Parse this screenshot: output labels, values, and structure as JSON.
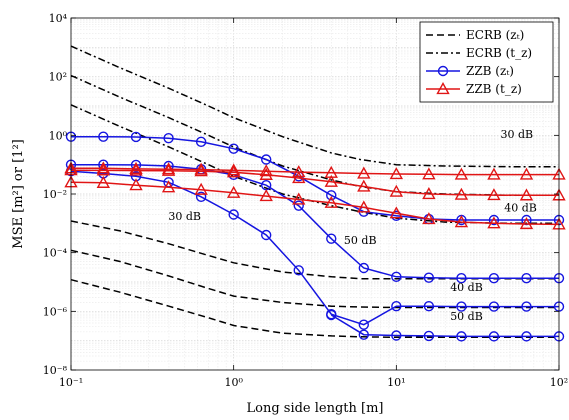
{
  "chart_data": {
    "type": "line",
    "x_scale": "log",
    "y_scale": "log",
    "xlim": [
      0.1,
      100
    ],
    "ylim": [
      1e-08,
      10000
    ],
    "xlabel": "Long side length [m]",
    "ylabel": "MSE [m²] or [1²]",
    "grid": true,
    "legend_position": "top-right",
    "x_ticks": [
      0.1,
      1,
      10,
      100
    ],
    "x_tick_labels": [
      "10⁻¹",
      "10⁰",
      "10¹",
      "10²"
    ],
    "y_ticks": [
      1e-08,
      1e-06,
      0.0001,
      0.01,
      1,
      100,
      10000
    ],
    "y_tick_labels": [
      "10⁻⁸",
      "10⁻⁶",
      "10⁻⁴",
      "10⁻²",
      "10⁰",
      "10²",
      "10⁴"
    ],
    "series": [
      {
        "name": "ECRB (z_t)",
        "legend_label": "ECRB (zₜ)",
        "color": "#000000",
        "dash": "dashed",
        "marker": "none",
        "groups": [
          {
            "x": [
              0.1,
              0.2,
              0.4,
              0.7,
              1,
              2,
              4,
              6,
              10,
              20,
              50,
              100
            ],
            "y": [
              0.0012,
              0.00055,
              0.0002,
              8e-05,
              4.5e-05,
              2.2e-05,
              1.5e-05,
              1.3e-05,
              1.3e-05,
              1.3e-05,
              1.3e-05,
              1.3e-05
            ]
          },
          {
            "x": [
              0.1,
              0.2,
              0.4,
              0.7,
              1,
              2,
              4,
              6,
              10,
              20,
              50,
              100
            ],
            "y": [
              0.00012,
              5e-05,
              1.6e-05,
              6e-06,
              3.3e-06,
              2e-06,
              1.5e-06,
              1.4e-06,
              1.35e-06,
              1.35e-06,
              1.35e-06,
              1.35e-06
            ]
          },
          {
            "x": [
              0.1,
              0.2,
              0.4,
              0.7,
              1,
              2,
              4,
              6,
              10,
              20,
              50,
              100
            ],
            "y": [
              1.2e-05,
              4.5e-06,
              1.5e-06,
              6e-07,
              3.3e-07,
              1.8e-07,
              1.45e-07,
              1.35e-07,
              1.3e-07,
              1.3e-07,
              1.3e-07,
              1.3e-07
            ]
          }
        ]
      },
      {
        "name": "ECRB (t_z)",
        "legend_label": "ECRB (t_z)",
        "color": "#000000",
        "dash": "dashdot",
        "marker": "none",
        "groups": [
          {
            "x": [
              0.1,
              0.2,
              0.4,
              0.7,
              1,
              2,
              4,
              6,
              10,
              20,
              50,
              100
            ],
            "y": [
              1100,
              200,
              40,
              10,
              4,
              0.9,
              0.25,
              0.15,
              0.1,
              0.09,
              0.085,
              0.085
            ]
          },
          {
            "x": [
              0.1,
              0.2,
              0.4,
              0.7,
              1,
              2,
              4,
              6,
              10,
              20,
              50,
              100
            ],
            "y": [
              110,
              20,
              4,
              1,
              0.4,
              0.09,
              0.03,
              0.018,
              0.012,
              0.01,
              0.009,
              0.009
            ]
          },
          {
            "x": [
              0.1,
              0.2,
              0.4,
              0.7,
              1,
              2,
              4,
              6,
              10,
              20,
              50,
              100
            ],
            "y": [
              11,
              2,
              0.4,
              0.1,
              0.04,
              0.01,
              0.004,
              0.0025,
              0.0015,
              0.0011,
              0.001,
              0.001
            ]
          }
        ]
      },
      {
        "name": "ZZB (z_t)",
        "legend_label": "ZZB (zₜ)",
        "color": "#1515e0",
        "dash": "solid",
        "marker": "circle",
        "groups": [
          {
            "x": [
              0.1,
              0.158,
              0.251,
              0.398,
              0.631,
              1,
              1.585,
              2.512,
              3.981,
              6.31,
              10,
              15.85,
              25.12,
              39.81,
              63.1,
              100
            ],
            "y": [
              0.9,
              0.9,
              0.88,
              0.8,
              0.6,
              0.35,
              0.15,
              0.04,
              0.009,
              0.0025,
              0.0018,
              0.0014,
              0.0013,
              0.0013,
              0.0013,
              0.0013
            ]
          },
          {
            "x": [
              0.1,
              0.158,
              0.251,
              0.398,
              0.631,
              1,
              1.585,
              2.512,
              3.981,
              6.31,
              10,
              15.85,
              25.12,
              39.81,
              63.1,
              100
            ],
            "y": [
              0.1,
              0.1,
              0.098,
              0.09,
              0.07,
              0.045,
              0.02,
              0.004,
              0.0003,
              3e-05,
              1.5e-05,
              1.4e-05,
              1.35e-05,
              1.35e-05,
              1.35e-05,
              1.35e-05
            ]
          },
          {
            "x": [
              0.1,
              0.158,
              0.251,
              0.398,
              0.631,
              1,
              1.585,
              2.512,
              3.981,
              6.31,
              10,
              15.85,
              25.12,
              39.81,
              63.1,
              100
            ],
            "y": [
              0.06,
              0.05,
              0.04,
              0.025,
              0.008,
              0.002,
              0.0004,
              2.5e-05,
              8e-07,
              3.5e-07,
              1.5e-06,
              1.5e-06,
              1.45e-06,
              1.45e-06,
              1.45e-06,
              1.45e-06
            ]
          },
          {
            "x": [
              3.981,
              6.31,
              10,
              15.85,
              25.12,
              39.81,
              63.1,
              100
            ],
            "y": [
              7.5e-07,
              1.6e-07,
              1.5e-07,
              1.45e-07,
              1.4e-07,
              1.4e-07,
              1.4e-07,
              1.4e-07
            ]
          }
        ]
      },
      {
        "name": "ZZB (t_z)",
        "legend_label": "ZZB (t_z)",
        "color": "#e01515",
        "dash": "solid",
        "marker": "triangle",
        "groups": [
          {
            "x": [
              0.1,
              0.158,
              0.251,
              0.398,
              0.631,
              1,
              1.585,
              2.512,
              3.981,
              6.31,
              10,
              15.85,
              25.12,
              39.81,
              63.1,
              100
            ],
            "y": [
              0.075,
              0.075,
              0.072,
              0.07,
              0.068,
              0.064,
              0.06,
              0.056,
              0.053,
              0.05,
              0.048,
              0.047,
              0.046,
              0.046,
              0.046,
              0.046
            ]
          },
          {
            "x": [
              0.1,
              0.158,
              0.251,
              0.398,
              0.631,
              1,
              1.585,
              2.512,
              3.981,
              6.31,
              10,
              15.85,
              25.12,
              39.81,
              63.1,
              100
            ],
            "y": [
              0.065,
              0.064,
              0.063,
              0.062,
              0.06,
              0.055,
              0.045,
              0.035,
              0.026,
              0.018,
              0.012,
              0.01,
              0.0095,
              0.0092,
              0.009,
              0.009
            ]
          },
          {
            "x": [
              0.1,
              0.158,
              0.251,
              0.398,
              0.631,
              1,
              1.585,
              2.512,
              3.981,
              6.31,
              10,
              15.85,
              25.12,
              39.81,
              63.1,
              100
            ],
            "y": [
              0.025,
              0.024,
              0.02,
              0.017,
              0.014,
              0.011,
              0.0085,
              0.0065,
              0.005,
              0.0035,
              0.0022,
              0.0014,
              0.0011,
              0.001,
              0.00095,
              0.00092
            ]
          }
        ]
      }
    ],
    "annotations": [
      {
        "text": "30 dB",
        "x": 55,
        "y": 0.8
      },
      {
        "text": "40 dB",
        "x": 58,
        "y": 0.0025
      },
      {
        "text": "50 dB",
        "x": 6.0,
        "y": 0.0002
      },
      {
        "text": "30 dB",
        "x": 0.5,
        "y": 0.0013
      },
      {
        "text": "40 dB",
        "x": 27,
        "y": 5e-06
      },
      {
        "text": "50 dB",
        "x": 27,
        "y": 5e-07
      }
    ]
  }
}
